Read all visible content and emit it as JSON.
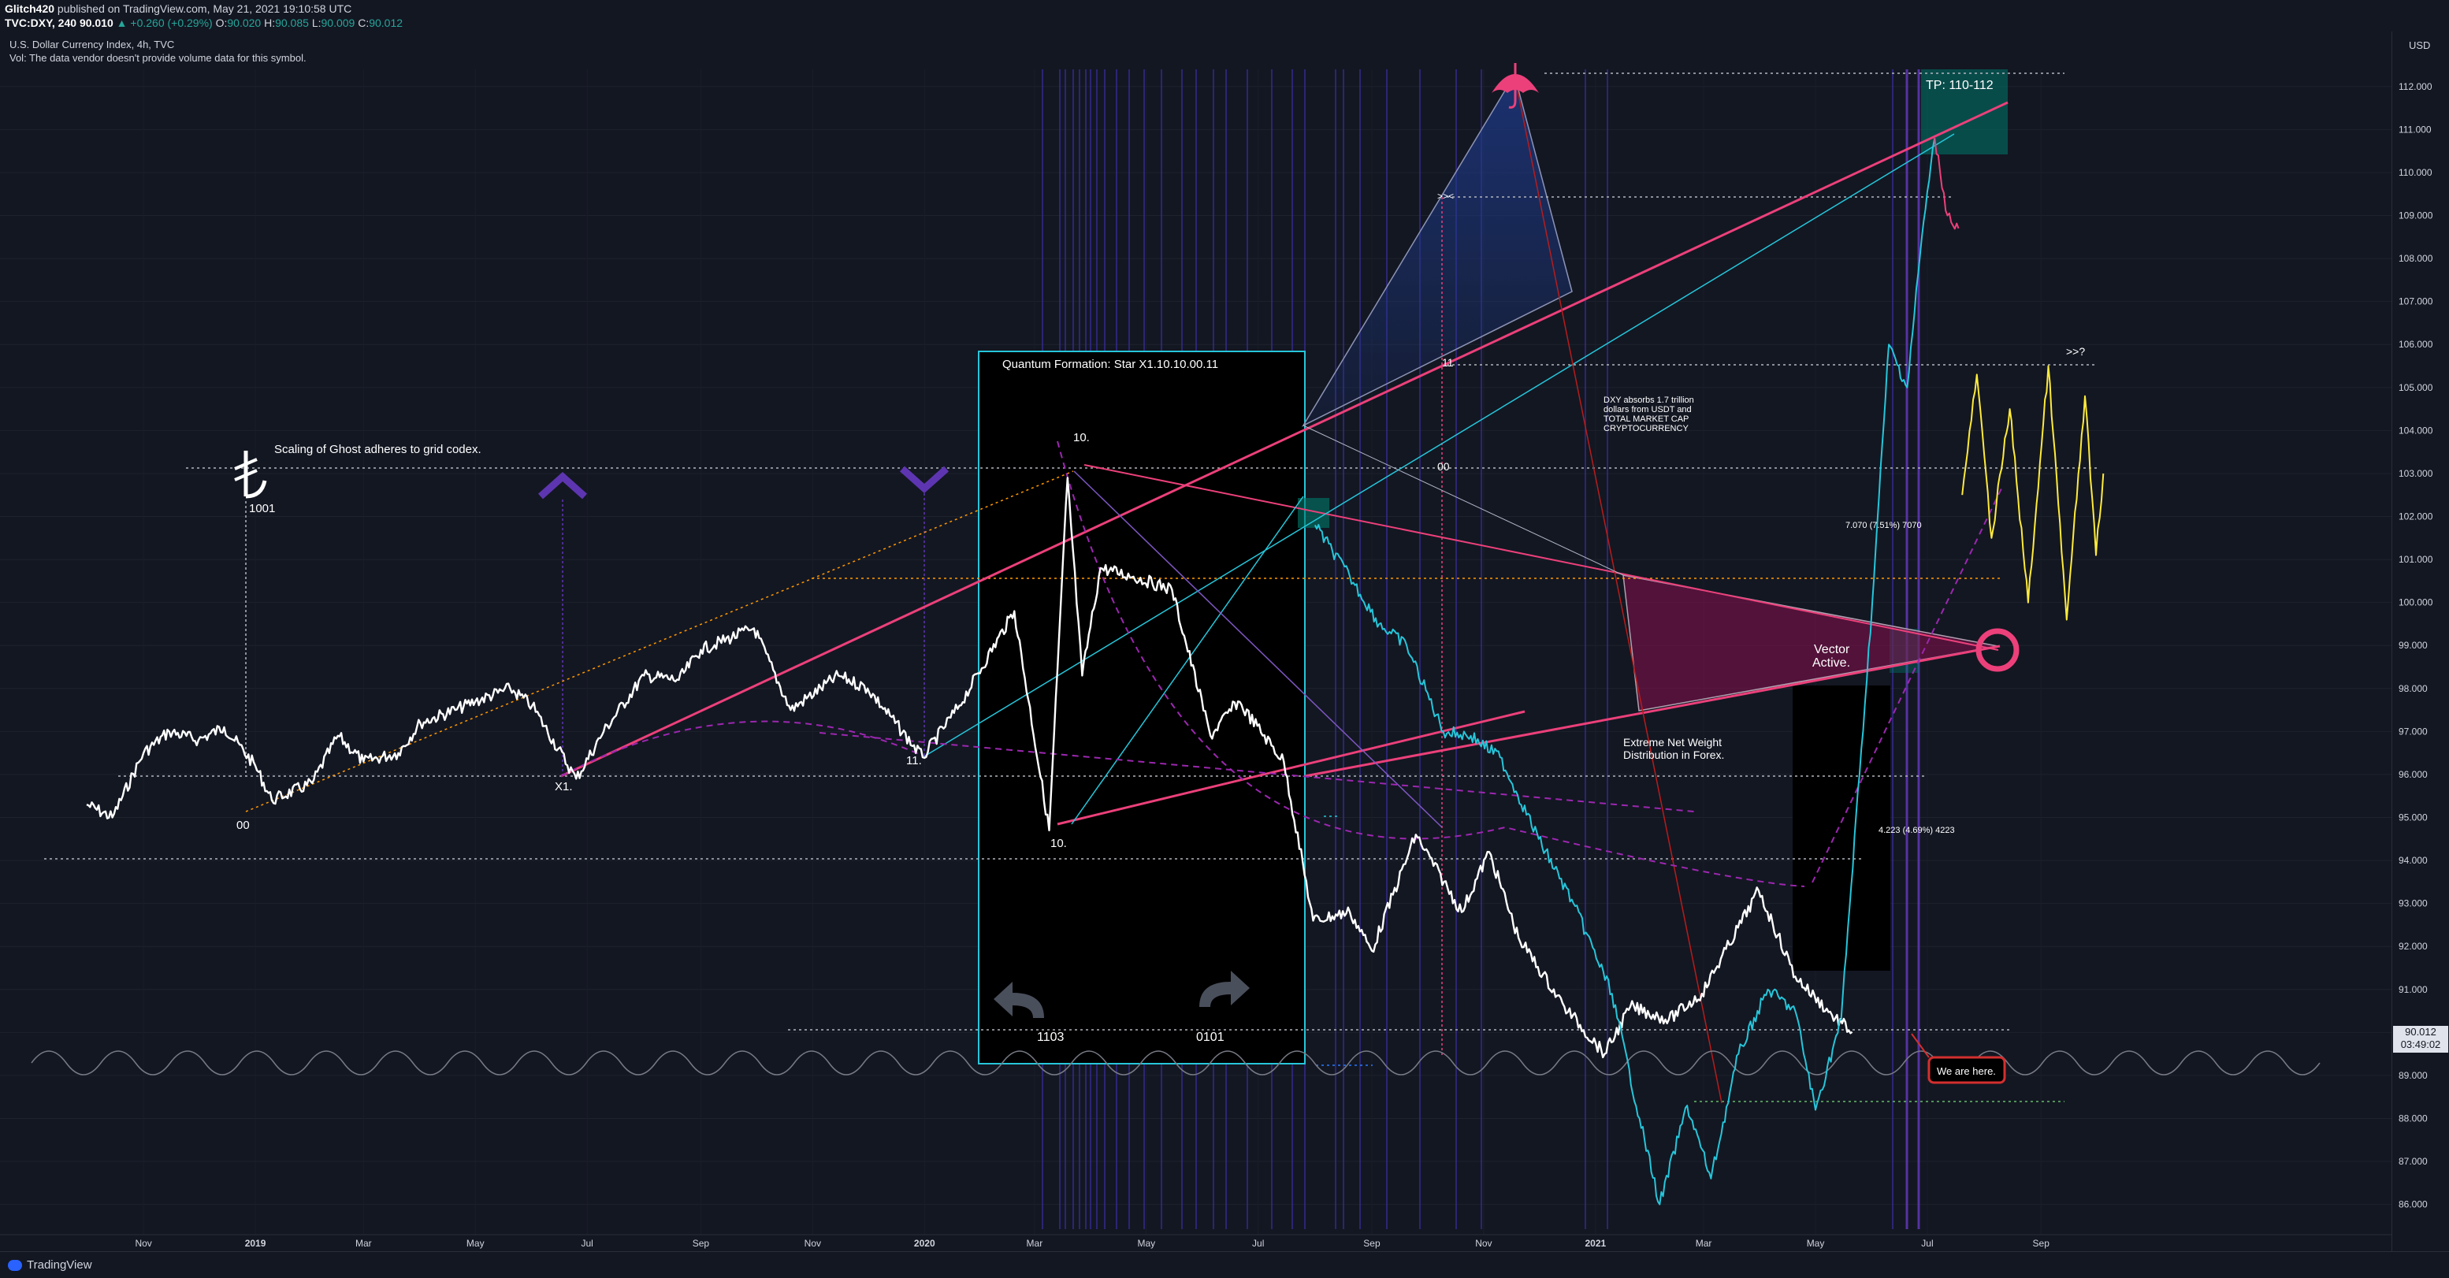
{
  "header": {
    "author": "Glitch420",
    "published": "published on TradingView.com, May 21, 2021 19:10:58 UTC",
    "symbol": "TVC:DXY, 240",
    "open": "90.010",
    "change": "▲ +0.260 (+0.29%)",
    "o_label": "O:",
    "o_value": "90.020",
    "h_label": "H:",
    "h_value": "90.085",
    "l_label": "L:",
    "l_value": "90.009",
    "c_label": "C:",
    "c_value": "90.012"
  },
  "legend": {
    "title": "U.S. Dollar Currency Index, 4h, TVC",
    "vol": "Vol: The data vendor doesn't provide volume data for this symbol."
  },
  "price_axis": {
    "currency": "USD",
    "ticks": [
      "112.000",
      "111.000",
      "110.000",
      "109.000",
      "108.000",
      "107.000",
      "106.000",
      "105.000",
      "104.000",
      "103.000",
      "102.000",
      "101.000",
      "100.000",
      "99.000",
      "98.000",
      "97.000",
      "96.000",
      "95.000",
      "94.000",
      "93.000",
      "92.000",
      "91.000",
      "90.000",
      "89.000",
      "88.000",
      "87.000",
      "86.000"
    ],
    "current_price": "90.012",
    "countdown": "03:49:02"
  },
  "time_axis": {
    "ticks": [
      "Nov",
      "2019",
      "Mar",
      "May",
      "Jul",
      "Sep",
      "Nov",
      "2020",
      "Mar",
      "May",
      "Jul",
      "Sep",
      "Nov",
      "2021",
      "Mar",
      "May",
      "Jul",
      "Sep"
    ]
  },
  "annotations": {
    "scaling": "Scaling of Ghost adheres to grid codex.",
    "n1001": "1001",
    "n00a": "00",
    "x1": "X1.",
    "n11a": "11.",
    "n10a": "10.",
    "n10b": "10.",
    "quantum": "Quantum Formation: Star X1.10.10.00.11",
    "n1103": "1103",
    "n0101": "0101",
    "n11b": "11",
    "n00b": "00",
    "arrows": ">><",
    "dxy_note": [
      "DXY absorbs 1.7 trillion",
      "dollars from USDT and",
      "TOTAL MARKET CAP",
      "CRYPTOCURRENCY"
    ],
    "extreme": [
      "Extreme Net Weight",
      "Distribution in Forex."
    ],
    "vector": [
      "Vector",
      "Active."
    ],
    "tp": "TP: 110-112",
    "q": ">>?",
    "measure1": "7.070 (7.51%) 7070",
    "measure2": "4.223 (4.69%) 4223",
    "here": "We are here."
  },
  "chart_data": {
    "type": "line",
    "title": "U.S. Dollar Currency Index, 4h, TVC",
    "ylabel": "USD",
    "ylim": [
      85.7,
      112.4
    ],
    "x_range": [
      "2018-10-01",
      "2021-10-01"
    ],
    "series": [
      {
        "color": "#ffffff",
        "points": [
          [
            "2018-10-01",
            95.3
          ],
          [
            "2018-10-15",
            95.0
          ],
          [
            "2018-11-01",
            96.5
          ],
          [
            "2018-11-15",
            97.0
          ],
          [
            "2018-12-01",
            96.8
          ],
          [
            "2018-12-15",
            97.1
          ],
          [
            "2019-01-01",
            96.2
          ],
          [
            "2019-01-10",
            95.4
          ],
          [
            "2019-02-01",
            95.8
          ],
          [
            "2019-02-15",
            96.9
          ],
          [
            "2019-03-01",
            96.3
          ],
          [
            "2019-03-20",
            96.5
          ],
          [
            "2019-04-01",
            97.2
          ],
          [
            "2019-04-20",
            97.5
          ],
          [
            "2019-05-01",
            97.7
          ],
          [
            "2019-05-20",
            98.0
          ],
          [
            "2019-06-01",
            97.6
          ],
          [
            "2019-06-25",
            95.9
          ],
          [
            "2019-07-10",
            97.0
          ],
          [
            "2019-08-01",
            98.3
          ],
          [
            "2019-08-20",
            98.2
          ],
          [
            "2019-09-01",
            98.9
          ],
          [
            "2019-09-30",
            99.4
          ],
          [
            "2019-10-20",
            97.5
          ],
          [
            "2019-11-15",
            98.3
          ],
          [
            "2019-12-01",
            98.0
          ],
          [
            "2019-12-31",
            96.4
          ],
          [
            "2020-01-20",
            97.6
          ],
          [
            "2020-02-19",
            99.8
          ],
          [
            "2020-03-09",
            94.7
          ],
          [
            "2020-03-19",
            102.9
          ],
          [
            "2020-03-27",
            98.3
          ],
          [
            "2020-04-06",
            100.8
          ],
          [
            "2020-04-24",
            100.6
          ],
          [
            "2020-05-15",
            100.3
          ],
          [
            "2020-06-05",
            96.9
          ],
          [
            "2020-06-20",
            97.7
          ],
          [
            "2020-07-15",
            96.3
          ],
          [
            "2020-07-31",
            92.6
          ],
          [
            "2020-08-20",
            92.8
          ],
          [
            "2020-09-01",
            91.9
          ],
          [
            "2020-09-25",
            94.6
          ],
          [
            "2020-10-20",
            92.8
          ],
          [
            "2020-11-04",
            94.2
          ],
          [
            "2020-11-20",
            92.2
          ],
          [
            "2020-12-15",
            90.6
          ],
          [
            "2021-01-06",
            89.5
          ],
          [
            "2021-01-20",
            90.6
          ],
          [
            "2021-02-10",
            90.3
          ],
          [
            "2021-02-28",
            90.9
          ],
          [
            "2021-03-31",
            93.3
          ],
          [
            "2021-04-20",
            91.3
          ],
          [
            "2021-05-10",
            90.4
          ],
          [
            "2021-05-21",
            90.012
          ]
        ]
      },
      {
        "color": "#26c6da",
        "points": [
          [
            "2020-08-01",
            101.8
          ],
          [
            "2020-08-20",
            100.6
          ],
          [
            "2020-09-05",
            99.5
          ],
          [
            "2020-09-20",
            99.0
          ],
          [
            "2020-10-10",
            97.0
          ],
          [
            "2020-10-25",
            96.9
          ],
          [
            "2020-11-10",
            96.4
          ],
          [
            "2020-12-01",
            94.5
          ],
          [
            "2020-12-20",
            93.0
          ],
          [
            "2021-01-10",
            90.9
          ],
          [
            "2021-01-25",
            88.0
          ],
          [
            "2021-02-05",
            86.0
          ],
          [
            "2021-02-20",
            88.3
          ],
          [
            "2021-03-05",
            86.6
          ],
          [
            "2021-03-20",
            89.5
          ],
          [
            "2021-04-05",
            91.0
          ],
          [
            "2021-04-20",
            90.5
          ],
          [
            "2021-05-01",
            88.2
          ],
          [
            "2021-05-15",
            90.3
          ],
          [
            "2021-05-25",
            96.0
          ],
          [
            "2021-06-01",
            100.0
          ],
          [
            "2021-06-10",
            106.0
          ],
          [
            "2021-06-20",
            105.0
          ],
          [
            "2021-06-28",
            108.5
          ],
          [
            "2021-07-05",
            110.8
          ]
        ]
      },
      {
        "color": "#ec407a",
        "points": [
          [
            "2021-07-05",
            110.8
          ],
          [
            "2021-07-12",
            109.0
          ],
          [
            "2021-07-18",
            108.7
          ]
        ]
      },
      {
        "color": "#ffeb3b",
        "points": [
          [
            "2021-07-20",
            102.5
          ],
          [
            "2021-07-28",
            105.3
          ],
          [
            "2021-08-05",
            101.5
          ],
          [
            "2021-08-15",
            104.5
          ],
          [
            "2021-08-25",
            100.0
          ],
          [
            "2021-09-05",
            105.5
          ],
          [
            "2021-09-15",
            99.6
          ],
          [
            "2021-09-25",
            104.8
          ],
          [
            "2021-10-01",
            101.1
          ],
          [
            "2021-10-05",
            103.0
          ]
        ]
      }
    ]
  }
}
